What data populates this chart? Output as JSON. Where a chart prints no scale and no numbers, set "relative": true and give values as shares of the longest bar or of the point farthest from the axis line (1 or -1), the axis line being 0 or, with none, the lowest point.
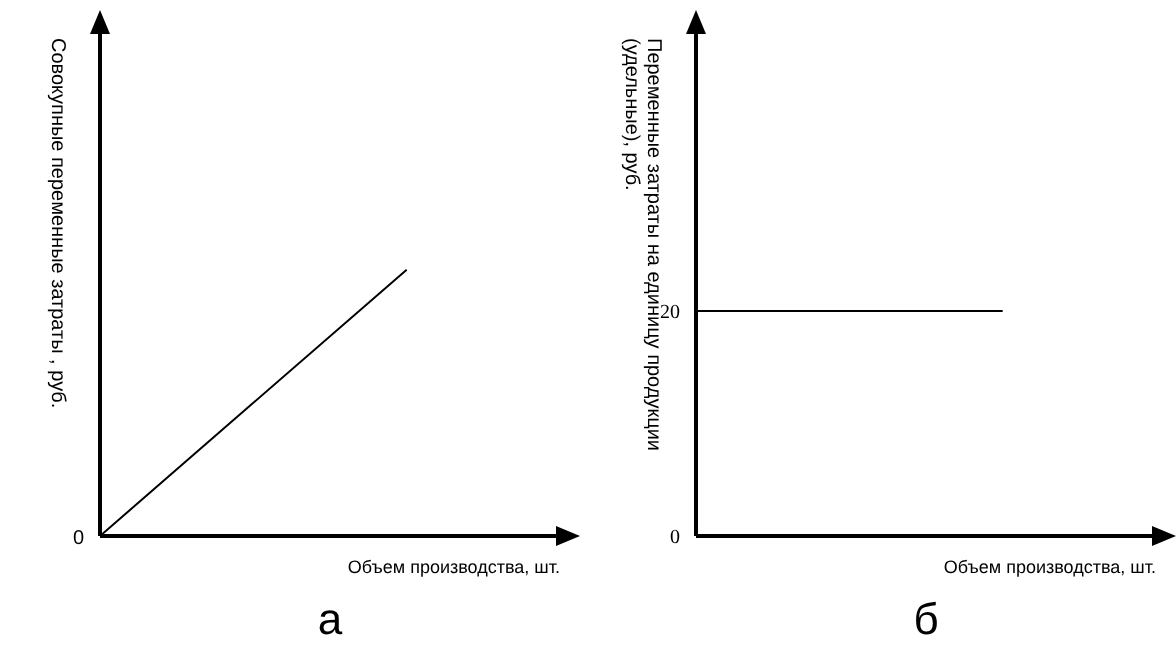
{
  "chart_data": [
    {
      "type": "line",
      "relative": true,
      "xlabel": "Объем производства, шт.",
      "ylabel": "Совокупные переменные затраты , руб.",
      "categories": [
        null,
        null,
        null,
        null
      ],
      "values": [
        0,
        0.5,
        1,
        null
      ],
      "color": "#000000",
      "marker": "none",
      "grid": false,
      "legend": false,
      "tick_labels": false,
      "annotations": [
        "0",
        "а"
      ]
    },
    {
      "type": "line",
      "xlabel": "Объем производства, шт.",
      "ylabel": "Переменные затраты на единицу продукции (удельные), руб.",
      "categories": [
        null,
        null,
        null,
        null
      ],
      "values": [
        20,
        20,
        20,
        null
      ],
      "color": "#000000",
      "ylim": [
        0,
        45
      ],
      "yticks": [
        0,
        20
      ],
      "marker": "none",
      "grid": false,
      "legend": false,
      "tick_labels": "y",
      "annotations": [
        "б"
      ]
    }
  ]
}
